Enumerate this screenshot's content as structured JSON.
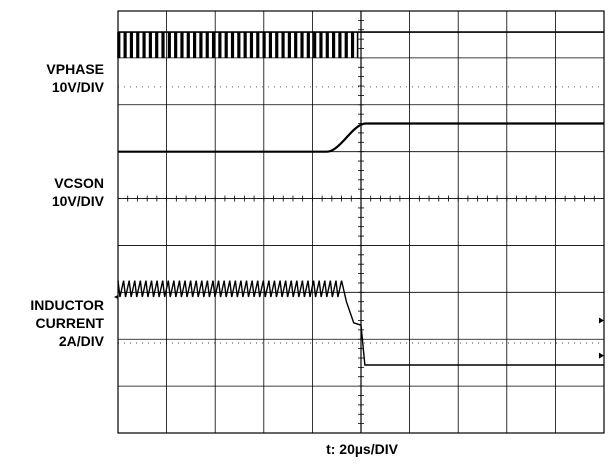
{
  "chart_data": {
    "type": "line",
    "title": "",
    "xlabel": "t: 20µs/DIV",
    "ylabel": "",
    "grid": true,
    "x_divisions": 10,
    "y_divisions": 9,
    "time_per_div_us": 20,
    "channels": [
      {
        "label_lines": [
          "VPHASE",
          "10V/DIV"
        ],
        "kind": "switching",
        "low_div": 8.0,
        "high_div": 8.55,
        "transition_div": 4.93,
        "period_div": 0.13,
        "after_level_div": 8.55
      },
      {
        "label_lines": [
          "VCSON",
          "10V/DIV"
        ],
        "kind": "ramp",
        "before_level_div": 6.0,
        "after_level_div": 6.6,
        "ramp_start_div": 4.3,
        "ramp_end_div": 5.1
      },
      {
        "label_lines": [
          "INDUCTOR",
          "CURRENT",
          "2A/DIV"
        ],
        "kind": "sawtooth_drop",
        "ripple_top_div": 3.25,
        "ripple_bottom_div": 2.9,
        "drop_start_div": 4.55,
        "drop_end_div": 5.0,
        "after_level_div": 1.45
      }
    ]
  }
}
